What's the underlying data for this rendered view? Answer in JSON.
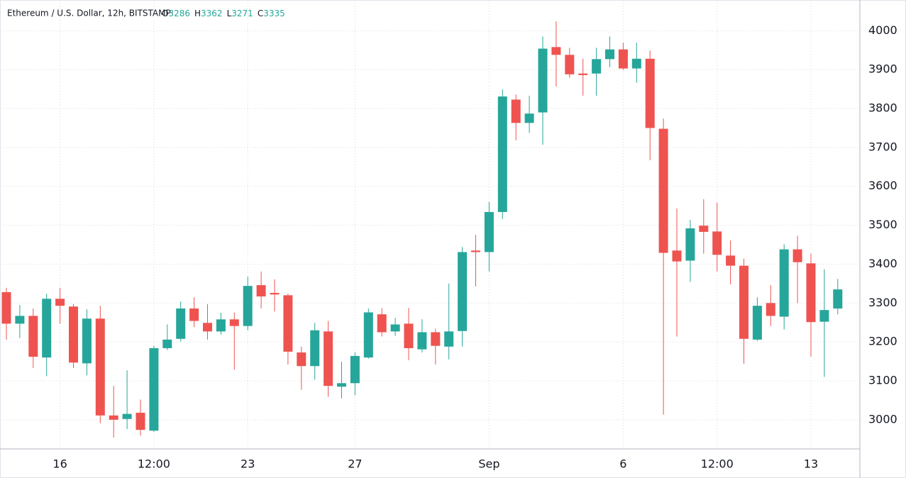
{
  "chart_data": {
    "type": "candlestick",
    "title": "Ethereum / U.S. Dollar, 12h, BITSTAMP",
    "legend_labels": [
      "O",
      "H",
      "L",
      "C"
    ],
    "up_color": "#26a69a",
    "down_color": "#ef5350",
    "categories": [
      null,
      null,
      null,
      null,
      "16",
      null,
      null,
      null,
      null,
      null,
      null,
      "12:00",
      null,
      null,
      null,
      null,
      null,
      null,
      "23",
      null,
      null,
      null,
      null,
      null,
      null,
      null,
      "27",
      null,
      null,
      null,
      null,
      null,
      null,
      null,
      null,
      null,
      "Sep",
      null,
      null,
      null,
      null,
      null,
      null,
      null,
      null,
      null,
      "6",
      null,
      null,
      null,
      null,
      null,
      null,
      "12:00",
      null,
      null,
      null,
      null,
      null,
      null,
      "13",
      null,
      null
    ],
    "open": [
      3328,
      3247,
      3267,
      3160,
      3311,
      3291,
      3145,
      3260,
      3011,
      3002,
      3018,
      2972,
      3184,
      3208,
      3286,
      3249,
      3227,
      3258,
      3241,
      3346,
      3326,
      3320,
      3173,
      3138,
      3227,
      3085,
      3094,
      3160,
      3271,
      3227,
      3247,
      3181,
      3225,
      3188,
      3228,
      3435,
      3431,
      3534,
      3823,
      3763,
      3790,
      3958,
      3938,
      3890,
      3890,
      3927,
      3952,
      3903,
      3928,
      3748,
      3435,
      3409,
      3499,
      3484,
      3422,
      3396,
      3206,
      3300,
      3265,
      3438,
      3402,
      3252,
      3286
    ],
    "high": [
      3339,
      3295,
      3286,
      3324,
      3339,
      3298,
      3284,
      3293,
      3087,
      3127,
      3052,
      3190,
      3245,
      3304,
      3315,
      3297,
      3275,
      3276,
      3368,
      3381,
      3361,
      3324,
      3188,
      3249,
      3254,
      3149,
      3173,
      3286,
      3287,
      3262,
      3287,
      3258,
      3234,
      3350,
      3444,
      3475,
      3560,
      3849,
      3836,
      3833,
      3985,
      4024,
      3956,
      3928,
      3956,
      3985,
      3969,
      3969,
      3949,
      3774,
      3543,
      3514,
      3567,
      3558,
      3461,
      3414,
      3315,
      3346,
      3451,
      3473,
      3427,
      3387,
      3362
    ],
    "low": [
      3206,
      3210,
      3133,
      3112,
      3247,
      3133,
      3114,
      2991,
      2954,
      2976,
      2959,
      2969,
      3179,
      3201,
      3238,
      3206,
      3219,
      3129,
      3230,
      3286,
      3278,
      3142,
      3077,
      3103,
      3059,
      3055,
      3063,
      3157,
      3214,
      3216,
      3153,
      3173,
      3142,
      3155,
      3188,
      3343,
      3381,
      3516,
      3718,
      3737,
      3707,
      3857,
      3879,
      3833,
      3833,
      3906,
      3899,
      3866,
      3667,
      3013,
      3214,
      3354,
      3427,
      3381,
      3348,
      3144,
      3203,
      3241,
      3232,
      3300,
      3162,
      3110,
      3271
    ],
    "close": [
      3247,
      3267,
      3162,
      3311,
      3293,
      3147,
      3260,
      3011,
      3000,
      3015,
      2974,
      3184,
      3206,
      3286,
      3254,
      3227,
      3258,
      3241,
      3344,
      3317,
      3322,
      3175,
      3138,
      3230,
      3087,
      3094,
      3164,
      3276,
      3225,
      3245,
      3184,
      3225,
      3190,
      3227,
      3431,
      3431,
      3534,
      3831,
      3763,
      3787,
      3954,
      3938,
      3888,
      3886,
      3927,
      3952,
      3903,
      3928,
      3750,
      3429,
      3407,
      3492,
      3483,
      3424,
      3396,
      3208,
      3293,
      3267,
      3438,
      3405,
      3251,
      3282,
      3335
    ],
    "ylim": [
      2925,
      4079
    ],
    "yticks": [
      3000,
      3100,
      3200,
      3300,
      3400,
      3500,
      3600,
      3700,
      3800,
      3900,
      4000
    ],
    "grid": true
  }
}
